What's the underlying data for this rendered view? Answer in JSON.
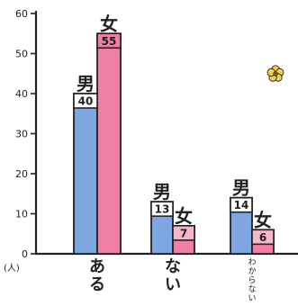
{
  "chart_data": {
    "type": "bar",
    "title": "",
    "xlabel": "",
    "ylabel": "(人)",
    "ylim": [
      0,
      60
    ],
    "yticks": [
      0,
      10,
      20,
      30,
      40,
      50,
      60
    ],
    "grid": false,
    "legend": "none",
    "categories": [
      "ある",
      "ない",
      "わからない"
    ],
    "series": [
      {
        "name": "男",
        "values": [
          40,
          13,
          14
        ],
        "color": "#7ea6e0"
      },
      {
        "name": "女",
        "values": [
          55,
          7,
          6
        ],
        "color": "#ef7fa6"
      }
    ],
    "flower_color": "#f2d24a"
  }
}
